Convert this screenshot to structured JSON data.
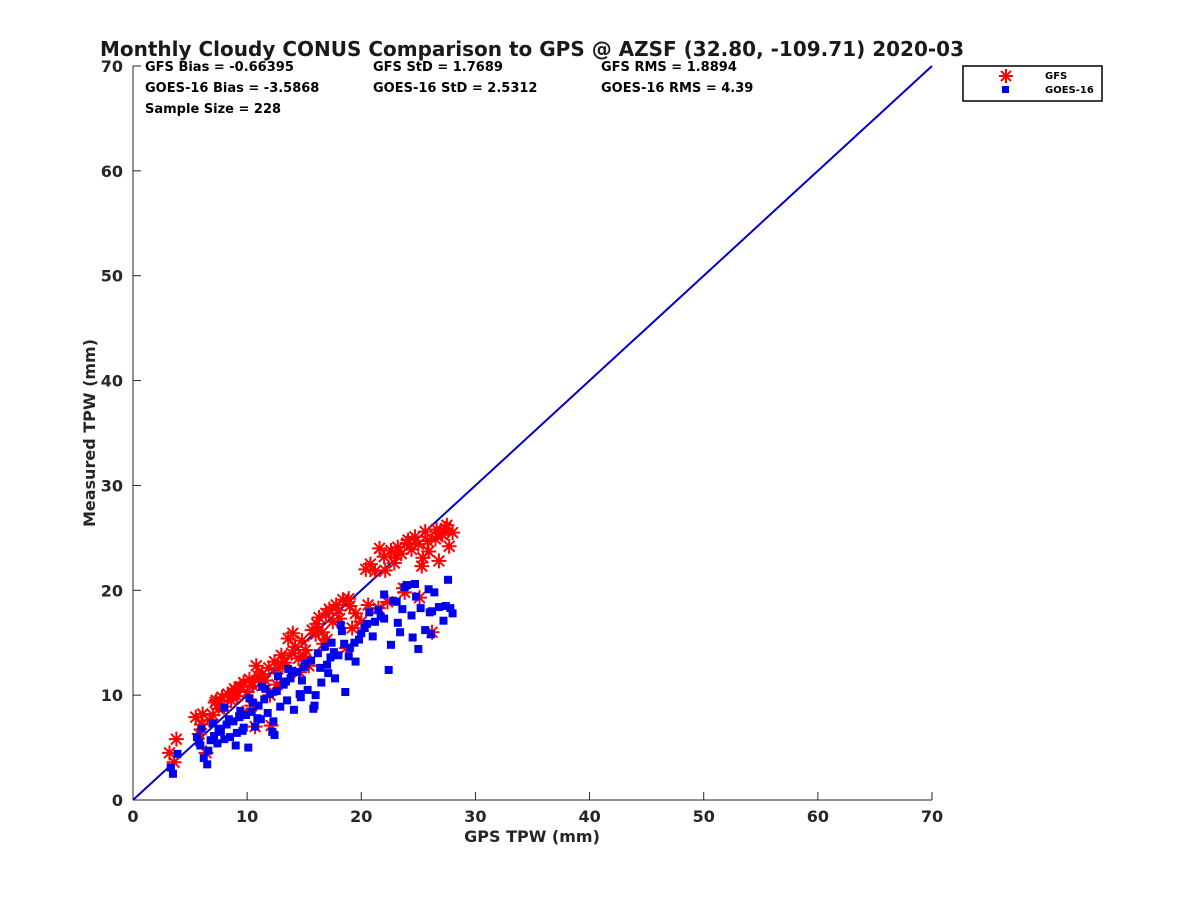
{
  "chart_data": {
    "type": "scatter",
    "title": "Monthly Cloudy CONUS Comparison to GPS @ AZSF (32.80, -109.71) 2020-03",
    "xlabel": "GPS TPW (mm)",
    "ylabel": "Measured TPW (mm)",
    "xlim": [
      0,
      70
    ],
    "ylim": [
      0,
      70
    ],
    "xticks": [
      "0",
      "10",
      "20",
      "30",
      "40",
      "50",
      "60",
      "70"
    ],
    "yticks": [
      "0",
      "10",
      "20",
      "30",
      "40",
      "50",
      "60",
      "70"
    ],
    "legend_position": "top-right (outside)",
    "stats": [
      "GFS Bias = -0.66395",
      "GFS StD = 1.7689",
      "GFS RMS = 1.8894",
      "GOES-16 Bias = -3.5868",
      "GOES-16 StD = 2.5312",
      "GOES-16 RMS = 4.39",
      "Sample Size = 228"
    ],
    "reference_line": {
      "from": [
        0,
        0
      ],
      "to": [
        70,
        70
      ],
      "color": "#0000cc"
    },
    "series": [
      {
        "name": "GFS",
        "marker": "asterisk",
        "color": "#ff0000",
        "x": [
          3.2,
          3.6,
          3.8,
          5.5,
          5.8,
          6.1,
          6.4,
          6.7,
          7.0,
          7.2,
          7.5,
          7.8,
          8.0,
          8.3,
          8.6,
          8.9,
          9.1,
          9.4,
          9.7,
          10.0,
          10.2,
          10.5,
          10.8,
          11.0,
          11.3,
          11.6,
          11.9,
          12.1,
          12.4,
          12.7,
          13.0,
          13.3,
          13.6,
          13.9,
          14.2,
          14.5,
          14.8,
          15.1,
          15.4,
          15.7,
          16.0,
          16.3,
          16.6,
          16.9,
          17.2,
          17.5,
          17.8,
          18.1,
          18.4,
          18.7,
          19.0,
          19.5,
          20.0,
          20.4,
          20.8,
          21.2,
          21.6,
          22.0,
          22.3,
          22.6,
          22.9,
          23.2,
          23.5,
          23.8,
          24.1,
          24.4,
          24.7,
          25.0,
          25.3,
          25.6,
          25.9,
          26.2,
          26.5,
          26.8,
          27.1,
          27.4,
          27.7,
          28.0,
          6.0,
          7.3,
          8.8,
          9.6,
          10.4,
          11.1,
          12.0,
          13.1,
          14.0,
          15.0,
          16.1,
          17.0,
          18.0,
          19.2,
          20.6,
          22.1,
          23.0,
          24.0,
          25.1,
          25.8,
          26.6,
          27.5,
          9.0,
          10.7,
          12.6,
          14.6,
          16.7,
          18.9,
          21.5,
          23.7,
          25.4,
          27.0
        ],
        "y": [
          4.5,
          3.6,
          5.8,
          7.9,
          6.3,
          8.2,
          4.5,
          7.6,
          8.1,
          9.3,
          8.7,
          9.8,
          8.9,
          10.1,
          9.5,
          10.6,
          9.9,
          10.8,
          11.2,
          10.3,
          11.5,
          10.9,
          12.8,
          11.8,
          12.0,
          11.4,
          12.6,
          7.1,
          13.2,
          12.5,
          13.8,
          13.1,
          15.4,
          14.0,
          14.6,
          13.5,
          15.2,
          14.3,
          12.8,
          16.2,
          15.8,
          17.4,
          16.0,
          17.8,
          18.2,
          17.0,
          18.6,
          17.3,
          19.1,
          14.5,
          18.5,
          17.8,
          17.0,
          22.0,
          22.5,
          21.8,
          24.0,
          23.2,
          18.9,
          23.8,
          22.6,
          24.1,
          23.5,
          19.8,
          24.8,
          23.9,
          25.1,
          24.4,
          22.3,
          25.6,
          23.7,
          16.0,
          24.9,
          22.8,
          25.3,
          25.9,
          24.2,
          25.5,
          7.2,
          9.5,
          10.2,
          8.3,
          9.0,
          11.7,
          10.0,
          12.9,
          15.9,
          13.7,
          16.8,
          15.3,
          18.1,
          16.4,
          18.6,
          21.9,
          23.4,
          24.5,
          19.3,
          24.7,
          25.8,
          26.2,
          10.4,
          7.0,
          11.0,
          12.2,
          14.9,
          19.2,
          18.3,
          20.2,
          23.1,
          25.4
        ]
      },
      {
        "name": "GOES-16",
        "marker": "square",
        "color": "#0000ee",
        "x": [
          3.3,
          3.5,
          3.9,
          5.6,
          5.9,
          6.2,
          6.5,
          6.8,
          7.1,
          7.4,
          7.7,
          8.0,
          8.2,
          8.5,
          8.8,
          9.0,
          9.3,
          9.6,
          9.9,
          10.1,
          10.4,
          10.7,
          11.0,
          11.2,
          11.5,
          11.8,
          12.0,
          12.3,
          12.6,
          12.9,
          13.2,
          13.5,
          13.8,
          14.1,
          14.4,
          14.7,
          15.0,
          15.3,
          15.6,
          15.9,
          16.2,
          16.5,
          16.8,
          17.1,
          17.4,
          17.7,
          18.0,
          18.3,
          18.6,
          19.0,
          19.5,
          20.0,
          20.5,
          21.0,
          21.5,
          22.0,
          22.4,
          22.8,
          23.2,
          23.6,
          24.0,
          24.4,
          24.8,
          25.2,
          25.6,
          26.0,
          26.4,
          26.8,
          27.2,
          27.6,
          28.0,
          6.0,
          7.0,
          8.0,
          9.1,
          10.2,
          11.3,
          12.4,
          13.6,
          14.8,
          16.0,
          17.3,
          18.5,
          19.8,
          21.2,
          22.6,
          23.8,
          25.0,
          26.2,
          27.4,
          5.8,
          6.6,
          7.5,
          8.4,
          9.4,
          10.5,
          11.6,
          12.7,
          13.9,
          15.1,
          16.4,
          17.6,
          18.9,
          20.3,
          21.7,
          23.1,
          24.5,
          25.9,
          27.8,
          9.7,
          10.9,
          12.2,
          13.4,
          14.6,
          15.8,
          17.0,
          18.2,
          19.4,
          20.7,
          22.0,
          23.4,
          24.7,
          26.1
        ],
        "y": [
          3.1,
          2.5,
          4.4,
          6.0,
          5.2,
          4.0,
          3.4,
          5.7,
          6.1,
          5.4,
          6.5,
          5.8,
          7.2,
          6.0,
          7.5,
          5.2,
          7.9,
          6.6,
          8.1,
          5.0,
          8.4,
          7.0,
          9.0,
          7.7,
          9.6,
          8.3,
          10.1,
          7.5,
          10.4,
          8.9,
          11.0,
          9.5,
          11.6,
          8.6,
          12.2,
          9.8,
          12.7,
          10.5,
          13.3,
          9.0,
          14.0,
          11.2,
          14.6,
          12.1,
          15.0,
          11.6,
          13.8,
          16.1,
          10.3,
          14.5,
          13.2,
          15.9,
          16.8,
          15.6,
          18.1,
          17.3,
          12.4,
          19.0,
          16.9,
          18.2,
          20.5,
          17.6,
          19.4,
          18.3,
          16.2,
          17.9,
          19.8,
          18.4,
          17.1,
          21.0,
          17.8,
          6.8,
          7.3,
          8.8,
          6.4,
          9.7,
          10.8,
          6.2,
          12.5,
          11.4,
          10.0,
          13.6,
          14.9,
          15.3,
          17.0,
          14.8,
          20.3,
          14.4,
          18.0,
          18.5,
          5.5,
          4.7,
          6.8,
          7.7,
          8.5,
          9.3,
          10.6,
          11.8,
          12.3,
          13.0,
          12.6,
          14.1,
          13.7,
          16.4,
          17.5,
          18.9,
          15.5,
          20.1,
          18.3,
          6.9,
          7.8,
          6.5,
          11.3,
          10.1,
          8.7,
          12.9,
          16.7,
          15.0,
          17.9,
          19.6,
          16.0,
          20.6,
          15.8
        ]
      }
    ]
  }
}
